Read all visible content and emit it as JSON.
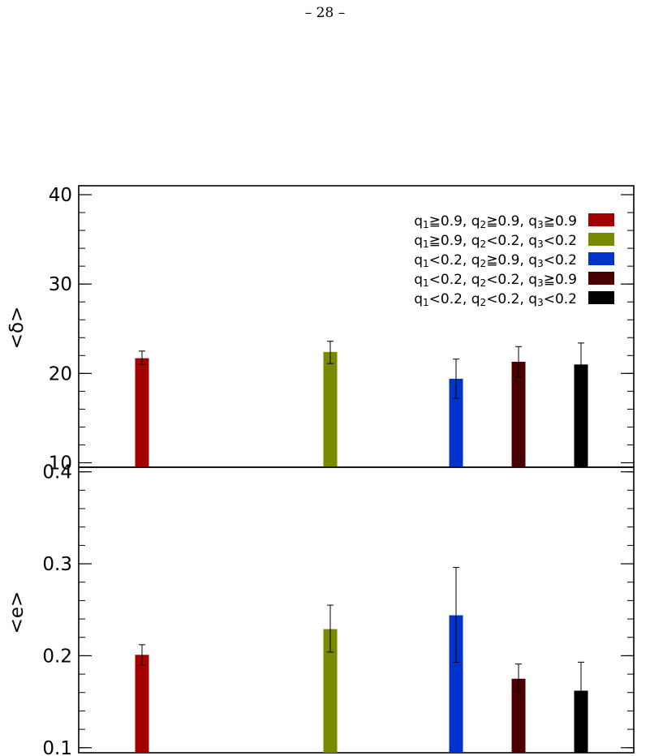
{
  "page": {
    "number_label": "– 28 –"
  },
  "colors": {
    "red": "#a50000",
    "olive": "#7a8a00",
    "blue": "#0033cc",
    "maroon": "#4a0000",
    "black": "#000000"
  },
  "legend": {
    "placement": "top-right",
    "entries": [
      {
        "pre": "q",
        "s1": "1",
        "t1": "≧0.9, q",
        "s2": "2",
        "t2": "≧0.9, q",
        "s3": "3",
        "t3": "≧0.9",
        "color": "#a50000"
      },
      {
        "pre": "q",
        "s1": "1",
        "t1": "≧0.9, q",
        "s2": "2",
        "t2": "<0.2, q",
        "s3": "3",
        "t3": "<0.2",
        "color": "#7a8a00"
      },
      {
        "pre": "q",
        "s1": "1",
        "t1": "<0.2, q",
        "s2": "2",
        "t2": "≧0.9, q",
        "s3": "3",
        "t3": "<0.2",
        "color": "#0033cc"
      },
      {
        "pre": "q",
        "s1": "1",
        "t1": "<0.2, q",
        "s2": "2",
        "t2": "<0.2, q",
        "s3": "3",
        "t3": "≧0.9",
        "color": "#4a0000"
      },
      {
        "pre": "q",
        "s1": "1",
        "t1": "<0.2, q",
        "s2": "2",
        "t2": "<0.2, q",
        "s3": "3",
        "t3": "<0.2",
        "color": "#000000"
      }
    ]
  },
  "chart_data": [
    {
      "type": "bar",
      "ylabel": "<δ>",
      "ylim": [
        9.5,
        41
      ],
      "yticks": [
        10,
        20,
        30,
        40
      ],
      "ytick_labels": [
        "10",
        "20",
        "30",
        "40"
      ],
      "minor_step": 2,
      "bars": [
        {
          "value": 21.7,
          "err_low": 21.0,
          "err_high": 22.5,
          "color": "#a50000"
        },
        {
          "value": 22.4,
          "err_low": 21.1,
          "err_high": 23.6,
          "color": "#7a8a00"
        },
        {
          "value": 19.4,
          "err_low": 17.2,
          "err_high": 21.6,
          "color": "#0033cc"
        },
        {
          "value": 21.3,
          "err_low": 19.6,
          "err_high": 23.0,
          "color": "#4a0000"
        },
        {
          "value": 21.0,
          "err_low": 18.5,
          "err_high": 23.4,
          "color": "#000000"
        }
      ]
    },
    {
      "type": "bar",
      "ylabel": "<e>",
      "ylim": [
        0.0945,
        0.405
      ],
      "yticks": [
        0.1,
        0.2,
        0.3,
        0.4
      ],
      "ytick_labels": [
        "0.1",
        "0.2",
        "0.3",
        "0.4"
      ],
      "minor_step": 0.02,
      "bars": [
        {
          "value": 0.201,
          "err_low": 0.19,
          "err_high": 0.212,
          "color": "#a50000"
        },
        {
          "value": 0.229,
          "err_low": 0.204,
          "err_high": 0.255,
          "color": "#7a8a00"
        },
        {
          "value": 0.244,
          "err_low": 0.193,
          "err_high": 0.296,
          "color": "#0033cc"
        },
        {
          "value": 0.175,
          "err_low": 0.16,
          "err_high": 0.191,
          "color": "#4a0000"
        },
        {
          "value": 0.162,
          "err_low": 0.131,
          "err_high": 0.193,
          "color": "#000000"
        }
      ]
    }
  ]
}
